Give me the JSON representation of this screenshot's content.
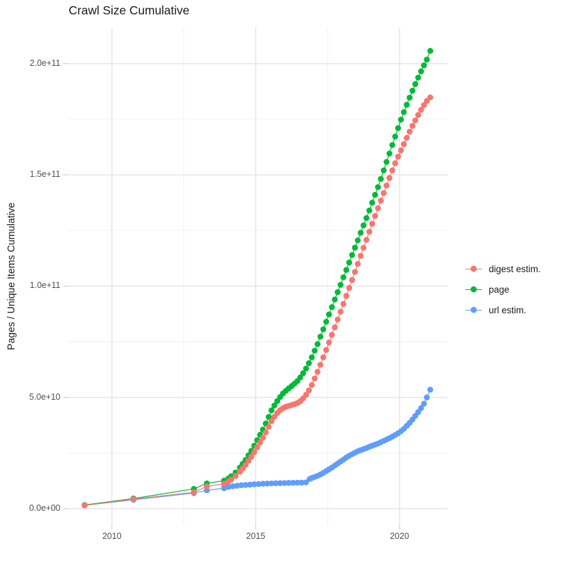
{
  "page": {
    "background_color": "#ffffff",
    "text_color": "#1a1a1a",
    "tick_text_color": "#4d4d4d",
    "grid_major_color": "#e5e5e5",
    "grid_minor_color": "#f0f0f0",
    "tick_mark_color": "#d6d6d6"
  },
  "chart_data": {
    "type": "scatter",
    "title": "Crawl Size Cumulative",
    "xlabel": "",
    "ylabel": "Pages / Unique Items Cumulative",
    "y_unit_note": "point y-values stored in billions (1e9); axis shows scientific notation",
    "xlim": [
      2008.45,
      2021.67
    ],
    "ylim_e9": [
      -7.4,
      216.2
    ],
    "grid": "major and minor light-gray gridlines on white background",
    "legend_position": "right",
    "x_ticks": {
      "major": [
        {
          "value": 2010,
          "label": "2010"
        },
        {
          "value": 2015,
          "label": "2015"
        },
        {
          "value": 2020,
          "label": "2020"
        }
      ],
      "minor": [
        2012.5,
        2017.5
      ]
    },
    "y_ticks": {
      "major": [
        {
          "value_e9": 0,
          "label": "0.0e+00"
        },
        {
          "value_e9": 50,
          "label": "5.0e+10"
        },
        {
          "value_e9": 100,
          "label": "1.0e+11"
        },
        {
          "value_e9": 150,
          "label": "1.5e+11"
        },
        {
          "value_e9": 200,
          "label": "2.0e+11"
        }
      ],
      "minor_e9": [
        25,
        75,
        125,
        175
      ]
    },
    "draw_order": [
      2,
      1,
      0
    ],
    "series": [
      {
        "name": "digest estim.",
        "color": "#F8766D",
        "points": [
          [
            2009.05,
            1.5
          ],
          [
            2010.75,
            4.3
          ],
          [
            2012.85,
            7.4
          ],
          [
            2013.3,
            10.0
          ],
          [
            2013.9,
            11.2
          ],
          [
            2014.05,
            12.2
          ],
          [
            2014.15,
            13.1
          ],
          [
            2014.3,
            14.7
          ],
          [
            2014.45,
            16.6
          ],
          [
            2014.55,
            18.1
          ],
          [
            2014.65,
            19.7
          ],
          [
            2014.75,
            21.6
          ],
          [
            2014.85,
            23.4
          ],
          [
            2014.95,
            25.4
          ],
          [
            2015.05,
            27.6
          ],
          [
            2015.15,
            29.8
          ],
          [
            2015.25,
            31.9
          ],
          [
            2015.35,
            34.3
          ],
          [
            2015.45,
            36.8
          ],
          [
            2015.55,
            39.3
          ],
          [
            2015.65,
            41.3
          ],
          [
            2015.75,
            43.0
          ],
          [
            2015.85,
            44.3
          ],
          [
            2015.95,
            45.2
          ],
          [
            2016.05,
            45.8
          ],
          [
            2016.15,
            46.2
          ],
          [
            2016.25,
            46.6
          ],
          [
            2016.35,
            47.0
          ],
          [
            2016.45,
            47.5
          ],
          [
            2016.55,
            48.3
          ],
          [
            2016.65,
            49.6
          ],
          [
            2016.75,
            51.2
          ],
          [
            2016.85,
            53.2
          ],
          [
            2016.95,
            55.6
          ],
          [
            2017.05,
            58.5
          ],
          [
            2017.15,
            61.5
          ],
          [
            2017.25,
            64.7
          ],
          [
            2017.35,
            68.0
          ],
          [
            2017.45,
            71.3
          ],
          [
            2017.55,
            74.7
          ],
          [
            2017.65,
            78.1
          ],
          [
            2017.75,
            81.5
          ],
          [
            2017.85,
            85.0
          ],
          [
            2017.95,
            88.5
          ],
          [
            2018.05,
            92.0
          ],
          [
            2018.15,
            95.6
          ],
          [
            2018.25,
            99.2
          ],
          [
            2018.35,
            102.8
          ],
          [
            2018.45,
            106.4
          ],
          [
            2018.55,
            110.0
          ],
          [
            2018.65,
            113.6
          ],
          [
            2018.75,
            117.2
          ],
          [
            2018.85,
            120.8
          ],
          [
            2018.95,
            124.4
          ],
          [
            2019.05,
            128.0
          ],
          [
            2019.15,
            131.5
          ],
          [
            2019.25,
            135.0
          ],
          [
            2019.35,
            138.4
          ],
          [
            2019.45,
            141.8
          ],
          [
            2019.55,
            145.2
          ],
          [
            2019.65,
            148.6
          ],
          [
            2019.75,
            152.0
          ],
          [
            2019.85,
            155.2
          ],
          [
            2019.95,
            158.2
          ],
          [
            2020.05,
            161.0
          ],
          [
            2020.15,
            163.8
          ],
          [
            2020.25,
            166.6
          ],
          [
            2020.35,
            169.4
          ],
          [
            2020.45,
            172.0
          ],
          [
            2020.55,
            174.5
          ],
          [
            2020.65,
            176.9
          ],
          [
            2020.75,
            179.2
          ],
          [
            2020.85,
            181.3
          ],
          [
            2020.95,
            183.2
          ],
          [
            2021.07,
            184.8
          ]
        ]
      },
      {
        "name": "page",
        "color": "#00BA38",
        "points": [
          [
            2009.05,
            1.7
          ],
          [
            2010.75,
            4.6
          ],
          [
            2012.85,
            8.9
          ],
          [
            2013.3,
            11.4
          ],
          [
            2013.9,
            12.6
          ],
          [
            2014.05,
            13.6
          ],
          [
            2014.15,
            14.6
          ],
          [
            2014.3,
            16.3
          ],
          [
            2014.45,
            18.5
          ],
          [
            2014.55,
            20.2
          ],
          [
            2014.65,
            21.9
          ],
          [
            2014.75,
            24.0
          ],
          [
            2014.85,
            26.0
          ],
          [
            2014.95,
            28.3
          ],
          [
            2015.05,
            30.8
          ],
          [
            2015.15,
            33.2
          ],
          [
            2015.25,
            35.5
          ],
          [
            2015.35,
            38.3
          ],
          [
            2015.45,
            41.2
          ],
          [
            2015.55,
            44.2
          ],
          [
            2015.65,
            46.4
          ],
          [
            2015.75,
            48.4
          ],
          [
            2015.85,
            50.2
          ],
          [
            2015.95,
            51.8
          ],
          [
            2016.05,
            53.0
          ],
          [
            2016.15,
            54.1
          ],
          [
            2016.25,
            55.1
          ],
          [
            2016.35,
            56.2
          ],
          [
            2016.45,
            57.4
          ],
          [
            2016.55,
            59.0
          ],
          [
            2016.65,
            60.9
          ],
          [
            2016.75,
            63.0
          ],
          [
            2016.85,
            65.4
          ],
          [
            2016.95,
            68.0
          ],
          [
            2017.05,
            71.0
          ],
          [
            2017.15,
            74.0
          ],
          [
            2017.25,
            77.3
          ],
          [
            2017.35,
            80.6
          ],
          [
            2017.45,
            84.0
          ],
          [
            2017.55,
            87.3
          ],
          [
            2017.65,
            90.6
          ],
          [
            2017.75,
            94.0
          ],
          [
            2017.85,
            97.3
          ],
          [
            2017.95,
            100.6
          ],
          [
            2018.05,
            104.0
          ],
          [
            2018.15,
            107.3
          ],
          [
            2018.25,
            110.6
          ],
          [
            2018.35,
            114.0
          ],
          [
            2018.45,
            117.3
          ],
          [
            2018.55,
            120.6
          ],
          [
            2018.65,
            124.0
          ],
          [
            2018.75,
            127.3
          ],
          [
            2018.85,
            130.6
          ],
          [
            2018.95,
            134.0
          ],
          [
            2019.05,
            137.5
          ],
          [
            2019.15,
            141.0
          ],
          [
            2019.25,
            144.5
          ],
          [
            2019.35,
            148.2
          ],
          [
            2019.45,
            152.0
          ],
          [
            2019.55,
            155.8
          ],
          [
            2019.65,
            159.6
          ],
          [
            2019.75,
            163.4
          ],
          [
            2019.85,
            167.2
          ],
          [
            2019.95,
            171.0
          ],
          [
            2020.05,
            174.8
          ],
          [
            2020.15,
            178.2
          ],
          [
            2020.25,
            181.5
          ],
          [
            2020.35,
            184.7
          ],
          [
            2020.45,
            187.8
          ],
          [
            2020.55,
            190.8
          ],
          [
            2020.65,
            193.7
          ],
          [
            2020.75,
            196.5
          ],
          [
            2020.85,
            199.2
          ],
          [
            2020.95,
            201.8
          ],
          [
            2021.07,
            205.7
          ]
        ]
      },
      {
        "name": "url estim.",
        "color": "#619CFF",
        "points": [
          [
            2009.05,
            1.5
          ],
          [
            2010.75,
            4.0
          ],
          [
            2012.85,
            7.0
          ],
          [
            2013.3,
            8.3
          ],
          [
            2013.9,
            9.2
          ],
          [
            2014.05,
            9.8
          ],
          [
            2014.2,
            10.1
          ],
          [
            2014.35,
            10.35
          ],
          [
            2014.5,
            10.55
          ],
          [
            2014.65,
            10.7
          ],
          [
            2014.8,
            10.85
          ],
          [
            2014.95,
            11.0
          ],
          [
            2015.1,
            11.1
          ],
          [
            2015.25,
            11.2
          ],
          [
            2015.4,
            11.3
          ],
          [
            2015.55,
            11.4
          ],
          [
            2015.7,
            11.45
          ],
          [
            2015.85,
            11.5
          ],
          [
            2016.0,
            11.55
          ],
          [
            2016.15,
            11.6
          ],
          [
            2016.3,
            11.65
          ],
          [
            2016.45,
            11.7
          ],
          [
            2016.6,
            11.75
          ],
          [
            2016.75,
            11.85
          ],
          [
            2016.88,
            13.4
          ],
          [
            2016.95,
            13.8
          ],
          [
            2017.05,
            14.3
          ],
          [
            2017.15,
            14.8
          ],
          [
            2017.25,
            15.4
          ],
          [
            2017.35,
            16.1
          ],
          [
            2017.45,
            16.9
          ],
          [
            2017.55,
            17.7
          ],
          [
            2017.65,
            18.5
          ],
          [
            2017.75,
            19.4
          ],
          [
            2017.85,
            20.3
          ],
          [
            2017.95,
            21.2
          ],
          [
            2018.05,
            22.1
          ],
          [
            2018.15,
            23.0
          ],
          [
            2018.25,
            23.8
          ],
          [
            2018.35,
            24.5
          ],
          [
            2018.45,
            25.2
          ],
          [
            2018.55,
            25.8
          ],
          [
            2018.65,
            26.3
          ],
          [
            2018.75,
            26.8
          ],
          [
            2018.85,
            27.3
          ],
          [
            2018.95,
            27.8
          ],
          [
            2019.05,
            28.3
          ],
          [
            2019.15,
            28.8
          ],
          [
            2019.25,
            29.3
          ],
          [
            2019.35,
            29.9
          ],
          [
            2019.45,
            30.5
          ],
          [
            2019.55,
            31.1
          ],
          [
            2019.65,
            31.7
          ],
          [
            2019.75,
            32.4
          ],
          [
            2019.85,
            33.1
          ],
          [
            2019.95,
            33.9
          ],
          [
            2020.05,
            34.8
          ],
          [
            2020.15,
            35.9
          ],
          [
            2020.25,
            37.2
          ],
          [
            2020.35,
            38.6
          ],
          [
            2020.45,
            40.1
          ],
          [
            2020.55,
            41.7
          ],
          [
            2020.65,
            43.4
          ],
          [
            2020.75,
            45.2
          ],
          [
            2020.85,
            47.2
          ],
          [
            2020.95,
            50.0
          ],
          [
            2021.07,
            53.5
          ]
        ]
      }
    ]
  }
}
